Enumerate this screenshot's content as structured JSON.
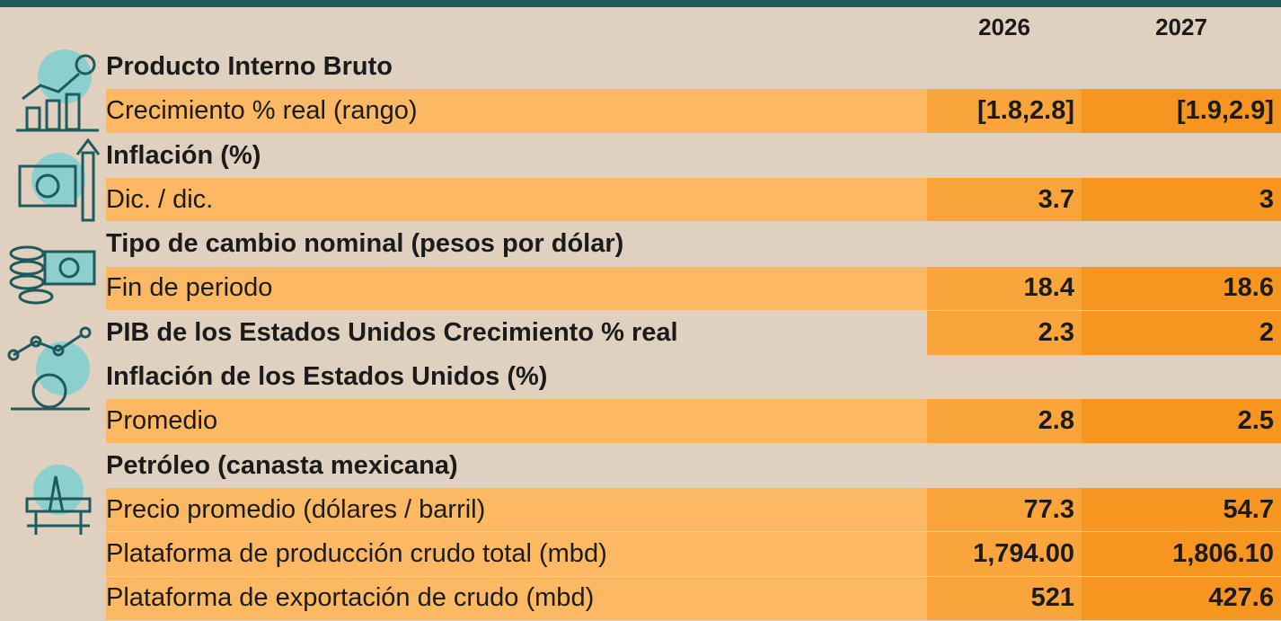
{
  "table": {
    "columns": [
      "2026",
      "2027"
    ],
    "sections": [
      {
        "title": "Producto Interno Bruto",
        "rows": [
          {
            "label": "Crecimiento % real (rango)",
            "values": [
              "[1.8,2.8]",
              "[1.9,2.9]"
            ]
          }
        ]
      },
      {
        "title": "Inflación (%)",
        "rows": [
          {
            "label": "Dic. / dic.",
            "values": [
              "3.7",
              "3"
            ]
          }
        ]
      },
      {
        "title": "Tipo de cambio nominal (pesos por dólar)",
        "rows": [
          {
            "label": "Fin de periodo",
            "values": [
              "18.4",
              "18.6"
            ]
          }
        ]
      },
      {
        "title": "PIB de los Estados Unidos Crecimiento % real",
        "values": [
          "2.3",
          "2"
        ],
        "rows": []
      },
      {
        "title": "Inflación de los Estados Unidos (%)",
        "rows": [
          {
            "label": "Promedio",
            "values": [
              "2.8",
              "2.5"
            ]
          }
        ]
      },
      {
        "title": "Petróleo (canasta mexicana)",
        "rows": [
          {
            "label": "Precio promedio (dólares / barril)",
            "values": [
              "77.3",
              "54.7"
            ]
          },
          {
            "label": "Plataforma de producción crudo total (mbd)",
            "values": [
              "1,794.00",
              "1,806.10"
            ]
          },
          {
            "label": "Plataforma de exportación de crudo (mbd)",
            "values": [
              "521",
              "427.6"
            ]
          }
        ]
      }
    ]
  }
}
